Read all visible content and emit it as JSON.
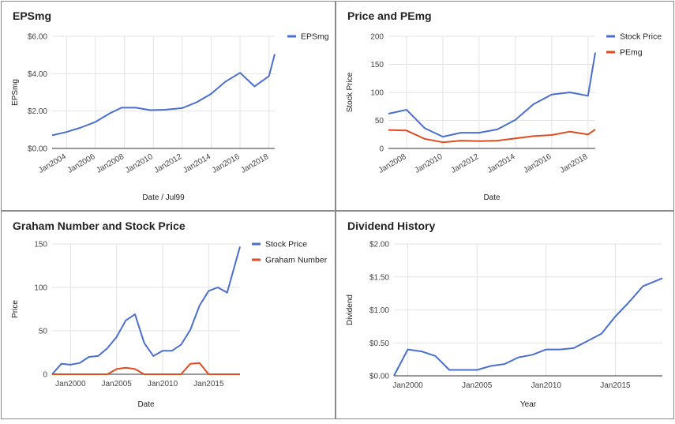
{
  "chart_data": [
    {
      "id": "eps",
      "type": "line",
      "title": "EPSmg",
      "xlabel": "Date / Jul99",
      "ylabel": "EPSmg",
      "xlim": [
        2003,
        2018.4
      ],
      "ylim": [
        0,
        6
      ],
      "yticks": [
        0,
        2,
        4,
        6
      ],
      "ytick_labels": [
        "$0.00",
        "$2.00",
        "$4.00",
        "$6.00"
      ],
      "xticks": [
        2004,
        2006,
        2008,
        2010,
        2012,
        2014,
        2016,
        2018
      ],
      "xtick_labels": [
        "Jan2004",
        "Jan2006",
        "Jan2008",
        "Jan2010",
        "Jan2012",
        "Jan2014",
        "Jan2016",
        "Jan2018"
      ],
      "xtick_rotate": true,
      "legend": "right",
      "series": [
        {
          "name": "EPSmg",
          "color": "#4a6fd1",
          "x": [
            2003,
            2004,
            2005,
            2006,
            2007,
            2007.8,
            2008.8,
            2009.8,
            2010.8,
            2012,
            2013,
            2014,
            2015,
            2016,
            2017,
            2018,
            2018.4
          ],
          "y": [
            0.7,
            0.88,
            1.12,
            1.42,
            1.88,
            2.18,
            2.18,
            2.05,
            2.07,
            2.16,
            2.47,
            2.92,
            3.58,
            4.05,
            3.32,
            3.87,
            5.05
          ]
        }
      ]
    },
    {
      "id": "price-pe",
      "type": "line",
      "title": "Price and PEmg",
      "xlabel": "Date",
      "ylabel": "Stock Price",
      "xlim": [
        2007,
        2018.4
      ],
      "ylim": [
        0,
        200
      ],
      "yticks": [
        0,
        50,
        100,
        150,
        200
      ],
      "ytick_labels": [
        "0",
        "50",
        "100",
        "150",
        "200"
      ],
      "xticks": [
        2008,
        2010,
        2012,
        2014,
        2016,
        2018
      ],
      "xtick_labels": [
        "Jan2008",
        "Jan2010",
        "Jan2012",
        "Jan2014",
        "Jan2016",
        "Jan2018"
      ],
      "xtick_rotate": true,
      "legend": "right",
      "series": [
        {
          "name": "Stock Price",
          "color": "#4a6fd1",
          "x": [
            2007,
            2008,
            2009,
            2010,
            2011,
            2012,
            2013,
            2014,
            2015,
            2016,
            2017,
            2018,
            2018.4
          ],
          "y": [
            62,
            69,
            36,
            21,
            28,
            28,
            34,
            51,
            79,
            96,
            100,
            94,
            171
          ]
        },
        {
          "name": "PEmg",
          "color": "#e04b20",
          "x": [
            2007,
            2008,
            2009,
            2010,
            2011,
            2012,
            2013,
            2014,
            2015,
            2016,
            2017,
            2018,
            2018.4
          ],
          "y": [
            33,
            32,
            17,
            11,
            14,
            13,
            14,
            18,
            22,
            24,
            30,
            25,
            34
          ]
        }
      ]
    },
    {
      "id": "graham",
      "type": "line",
      "title": "Graham Number and Stock Price",
      "xlabel": "Date",
      "ylabel": "Price",
      "xlim": [
        1998,
        2018.4
      ],
      "ylim": [
        0,
        150
      ],
      "yticks": [
        0,
        50,
        100,
        150
      ],
      "ytick_labels": [
        "0",
        "50",
        "100",
        "150"
      ],
      "xticks": [
        2000,
        2005,
        2010,
        2015
      ],
      "xtick_labels": [
        "Jan2000",
        "Jan2005",
        "Jan2010",
        "Jan2015"
      ],
      "xtick_rotate": false,
      "legend": "right",
      "series": [
        {
          "name": "Stock Price",
          "color": "#4a6fd1",
          "x": [
            1998,
            1999,
            2000,
            2001,
            2002,
            2003,
            2004,
            2005,
            2006,
            2007,
            2008,
            2009,
            2010,
            2011,
            2012,
            2013,
            2014,
            2015,
            2016,
            2017,
            2018.4
          ],
          "y": [
            0,
            12,
            11,
            13,
            20,
            21,
            30,
            43,
            62,
            69,
            36,
            21,
            27,
            27,
            34,
            51,
            79,
            96,
            100,
            94,
            147
          ]
        },
        {
          "name": "Graham Number",
          "color": "#e04b20",
          "x": [
            1998,
            1999,
            2000,
            2001,
            2002,
            2003,
            2004,
            2005,
            2006,
            2007,
            2008,
            2009,
            2010,
            2011,
            2012,
            2013,
            2014,
            2015,
            2016,
            2017,
            2018.4
          ],
          "y": [
            0,
            0,
            0,
            0,
            0,
            0,
            0,
            6,
            7.5,
            6,
            0,
            0,
            0,
            0,
            0,
            12,
            13,
            0,
            0,
            0,
            0
          ]
        }
      ]
    },
    {
      "id": "dividend",
      "type": "line",
      "title": "Dividend History",
      "xlabel": "Year",
      "ylabel": "Dividend",
      "xlim": [
        1999,
        2018.4
      ],
      "ylim": [
        0,
        2
      ],
      "yticks": [
        0,
        0.5,
        1,
        1.5,
        2
      ],
      "ytick_labels": [
        "$0.00",
        "$0.50",
        "$1.00",
        "$1.50",
        "$2.00"
      ],
      "xticks": [
        2000,
        2005,
        2010,
        2015
      ],
      "xtick_labels": [
        "Jan2000",
        "Jan2005",
        "Jan2010",
        "Jan2015"
      ],
      "xtick_rotate": false,
      "legend": "none",
      "series": [
        {
          "name": "",
          "color": "#4a6fd1",
          "x": [
            1999,
            2000,
            2001,
            2002,
            2003,
            2004,
            2005,
            2006,
            2007,
            2008,
            2009,
            2010,
            2011,
            2012,
            2013,
            2014,
            2015,
            2016,
            2017,
            2018.4
          ],
          "y": [
            0,
            0.4,
            0.37,
            0.3,
            0.09,
            0.09,
            0.09,
            0.15,
            0.18,
            0.28,
            0.32,
            0.4,
            0.4,
            0.42,
            0.53,
            0.64,
            0.9,
            1.12,
            1.36,
            1.48
          ]
        }
      ]
    }
  ]
}
